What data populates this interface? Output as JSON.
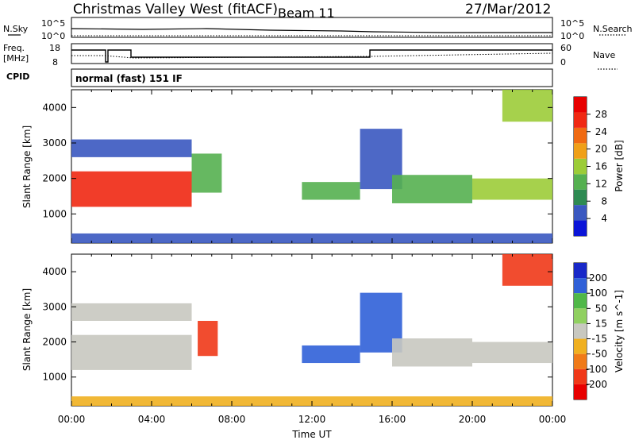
{
  "header": {
    "title": "Christmas Valley West (fitACF)",
    "beam": "Beam 11",
    "date": "27/Mar/2012"
  },
  "noise_panel": {
    "left_label": "N.Sky",
    "right_label": "N.Search",
    "left_ticks": [
      "10^5",
      "10^0"
    ],
    "right_ticks": [
      "10^5",
      "10^0"
    ]
  },
  "freq_panel": {
    "left_label_1": "Freq.",
    "left_label_2": "[MHz]",
    "right_label": "Nave",
    "left_ticks": [
      "18",
      "8"
    ],
    "right_ticks": [
      "60",
      "0"
    ]
  },
  "cpid": {
    "label": "CPID",
    "mode": "normal (fast) 151 IF"
  },
  "x_axis": {
    "label": "Time UT",
    "ticks": [
      "00:00",
      "04:00",
      "08:00",
      "12:00",
      "16:00",
      "20:00",
      "00:00"
    ]
  },
  "colors": {
    "power_scale": [
      "#0a14d8",
      "#3a58c0",
      "#2e8a52",
      "#55b050",
      "#9ccc38",
      "#f0a018",
      "#f06a12",
      "#f02812",
      "#e80000"
    ],
    "velocity_scale": [
      "#1828c8",
      "#3060d8",
      "#50b848",
      "#90d060",
      "#c8c8c0",
      "#f0b020",
      "#f07a18",
      "#f03818",
      "#e80000"
    ],
    "ground_scatter": "#b4b4b4",
    "axes": "#000000"
  },
  "chart_data": [
    {
      "type": "heatmap",
      "title": "",
      "xlabel": "",
      "ylabel": "Slant Range [km]",
      "yticks": [
        "1000",
        "2000",
        "3000",
        "4000"
      ],
      "colorbar_label": "Power [dB]",
      "colorbar_ticks": [
        "4",
        "8",
        "12",
        "16",
        "20",
        "24",
        "28"
      ],
      "xlim": [
        0,
        24
      ],
      "ylim": [
        180,
        4500
      ],
      "regions": [
        {
          "t0": 0.0,
          "t1": 6.0,
          "r0": 1200,
          "r1": 2200,
          "value": 26
        },
        {
          "t0": 0.0,
          "t1": 6.0,
          "r0": 2600,
          "r1": 3100,
          "value": 6
        },
        {
          "t0": 6.0,
          "t1": 7.5,
          "r0": 1600,
          "r1": 2700,
          "value": 12
        },
        {
          "t0": 11.5,
          "t1": 14.4,
          "r0": 1400,
          "r1": 1900,
          "value": 12
        },
        {
          "t0": 14.4,
          "t1": 16.5,
          "r0": 1700,
          "r1": 3400,
          "value": 8
        },
        {
          "t0": 16.0,
          "t1": 20.0,
          "r0": 1300,
          "r1": 2100,
          "value": 14
        },
        {
          "t0": 20.0,
          "t1": 24.0,
          "r0": 1400,
          "r1": 2000,
          "value": 18
        },
        {
          "t0": 21.5,
          "t1": 24.0,
          "r0": 3600,
          "r1": 4500,
          "value": 16
        },
        {
          "t0": 0.0,
          "t1": 24.0,
          "r0": 180,
          "r1": 450,
          "value": 6
        }
      ]
    },
    {
      "type": "heatmap",
      "title": "",
      "xlabel": "Time UT",
      "ylabel": "Slant Range [km]",
      "yticks": [
        "1000",
        "2000",
        "3000",
        "4000"
      ],
      "colorbar_label": "Velocity [m s^-1]",
      "colorbar_ticks": [
        "200",
        "100",
        "50",
        "15",
        "-15",
        "-50",
        "-100",
        "-200"
      ],
      "xlim": [
        0,
        24
      ],
      "ylim": [
        180,
        4500
      ],
      "regions": [
        {
          "t0": 0.0,
          "t1": 6.0,
          "r0": 1200,
          "r1": 2200,
          "value": 0
        },
        {
          "t0": 0.0,
          "t1": 6.0,
          "r0": 2600,
          "r1": 3100,
          "value": 0
        },
        {
          "t0": 6.3,
          "t1": 7.3,
          "r0": 1600,
          "r1": 2600,
          "value": -200
        },
        {
          "t0": 11.5,
          "t1": 14.4,
          "r0": 1400,
          "r1": 1900,
          "value": 120
        },
        {
          "t0": 14.4,
          "t1": 16.5,
          "r0": 1700,
          "r1": 3400,
          "value": 180
        },
        {
          "t0": 16.0,
          "t1": 20.0,
          "r0": 1300,
          "r1": 2100,
          "value": 0
        },
        {
          "t0": 20.0,
          "t1": 24.0,
          "r0": 1400,
          "r1": 2000,
          "value": 0
        },
        {
          "t0": 21.5,
          "t1": 24.0,
          "r0": 3600,
          "r1": 4500,
          "value": -200
        },
        {
          "t0": 0.0,
          "t1": 24.0,
          "r0": 180,
          "r1": 450,
          "value": -40
        }
      ]
    }
  ]
}
